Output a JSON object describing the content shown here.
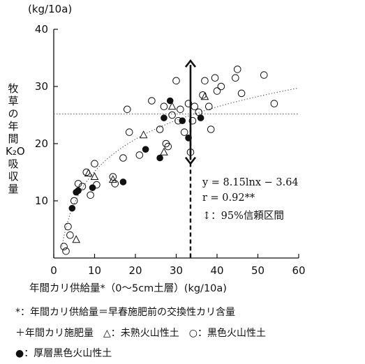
{
  "chart_data": {
    "type": "scatter",
    "y_unit_top": "(kg/10a)",
    "ylabel_chars": [
      "牧",
      "草",
      "の",
      "年",
      "間",
      "K₂O",
      "吸",
      "収",
      "量"
    ],
    "xlabel": "年間カリ供給量*（0～5cm土層）(kg/10a)",
    "xlim": [
      0,
      60
    ],
    "ylim": [
      0,
      40
    ],
    "x_ticks": [
      0,
      10,
      20,
      30,
      40,
      50,
      60
    ],
    "y_ticks": [
      10,
      20,
      30,
      40
    ],
    "series": [
      {
        "name": "未熟火山性土",
        "marker": "triangle",
        "points": [
          [
            5.5,
            3.2
          ],
          [
            8.5,
            14.8
          ],
          [
            10,
            14.2
          ],
          [
            14.5,
            13.7
          ],
          [
            22,
            21.5
          ],
          [
            27,
            18.5
          ],
          [
            29,
            26.5
          ],
          [
            37,
            28.2
          ]
        ]
      },
      {
        "name": "黒色火山性土",
        "marker": "circle",
        "points": [
          [
            2.5,
            2
          ],
          [
            3,
            1.2
          ],
          [
            3.5,
            5.5
          ],
          [
            4,
            4
          ],
          [
            5,
            10
          ],
          [
            6,
            13
          ],
          [
            7,
            12.5
          ],
          [
            8,
            15
          ],
          [
            9,
            11
          ],
          [
            10,
            16.5
          ],
          [
            10.5,
            12.8
          ],
          [
            14.5,
            14.2
          ],
          [
            15,
            13
          ],
          [
            17,
            17.5
          ],
          [
            18,
            26
          ],
          [
            18.5,
            22
          ],
          [
            21,
            18
          ],
          [
            24,
            27.5
          ],
          [
            26,
            22.5
          ],
          [
            27,
            26.5
          ],
          [
            27.5,
            20
          ],
          [
            28,
            19.5
          ],
          [
            29,
            25
          ],
          [
            30,
            31
          ],
          [
            30.5,
            24
          ],
          [
            31,
            26
          ],
          [
            32,
            22
          ],
          [
            33,
            27
          ],
          [
            33.5,
            18.5
          ],
          [
            34,
            24
          ],
          [
            34.5,
            26.5
          ],
          [
            35.5,
            25.5
          ],
          [
            36.5,
            28.5
          ],
          [
            37,
            31
          ],
          [
            38,
            26.5
          ],
          [
            38.5,
            22.5
          ],
          [
            39.5,
            31.5
          ],
          [
            40,
            29.2
          ],
          [
            41,
            30
          ],
          [
            44.5,
            31.5
          ],
          [
            45,
            33
          ],
          [
            46,
            28.8
          ],
          [
            51.5,
            32
          ],
          [
            54,
            27
          ]
        ]
      },
      {
        "name": "厚層黒色火山性土",
        "marker": "filled-circle",
        "points": [
          [
            4.5,
            8.7
          ],
          [
            5.5,
            11.5
          ],
          [
            6,
            11.8
          ],
          [
            9.5,
            12.3
          ],
          [
            17,
            13.3
          ],
          [
            22.5,
            19
          ],
          [
            26,
            17.5
          ],
          [
            27,
            24.5
          ],
          [
            28.5,
            27.5
          ],
          [
            31.5,
            24
          ],
          [
            33,
            21
          ],
          [
            36,
            24.5
          ]
        ]
      }
    ],
    "regression": {
      "x_range": [
        2,
        60
      ],
      "equation": "y = 8.15lnx − 3.64",
      "r_text": "r = 0.92**"
    },
    "reference_y": 25.2,
    "threshold_x": 33.5,
    "confidence_interval": {
      "x": 33.5,
      "y_low": 16.5,
      "y_high": 34.5,
      "label": "↕：95%信頼区間"
    },
    "notes": [
      "*：年間カリ供給量＝早春施肥前の交換性カリ含量",
      "＋年間カリ施肥量　△：未熟火山性土　○：黒色火山性土",
      "●：厚層黒色火山性土"
    ]
  }
}
